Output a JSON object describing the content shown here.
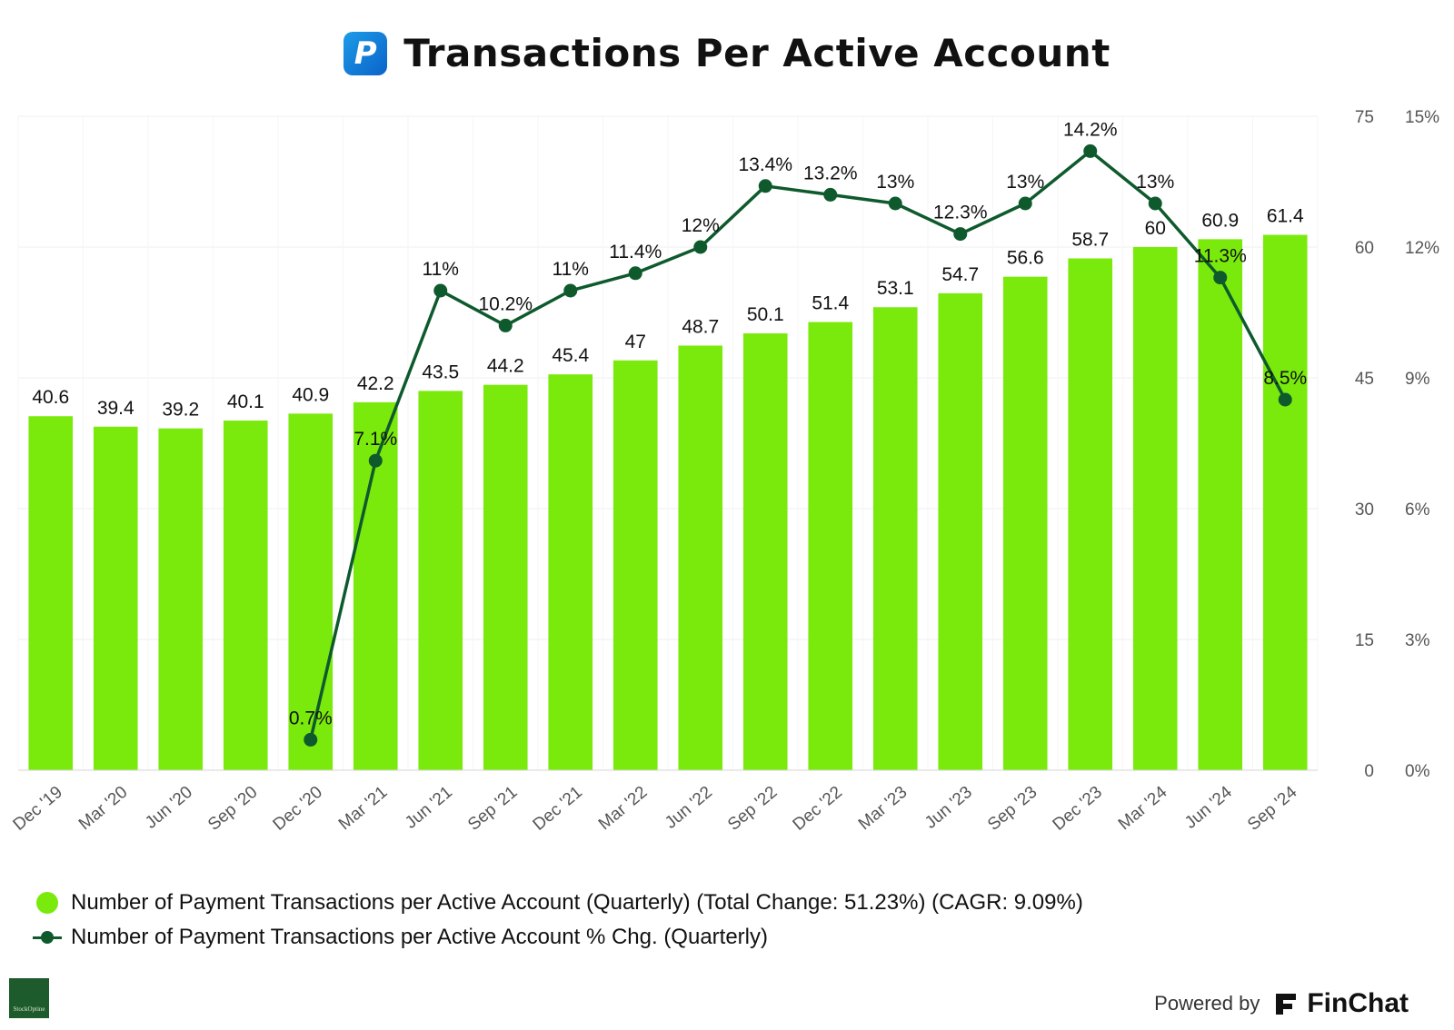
{
  "title": {
    "text": "Transactions Per Active Account",
    "logo_glyph": "P",
    "logo_icon": "paypal-logo-icon",
    "logo_color": "#1a8ee0"
  },
  "chart_data": {
    "type": "bar",
    "title": "Transactions Per Active Account",
    "categories": [
      "Dec '19",
      "Mar '20",
      "Jun '20",
      "Sep '20",
      "Dec '20",
      "Mar '21",
      "Jun '21",
      "Sep '21",
      "Dec '21",
      "Mar '22",
      "Jun '22",
      "Sep '22",
      "Dec '22",
      "Mar '23",
      "Jun '23",
      "Sep '23",
      "Dec '23",
      "Mar '24",
      "Jun '24",
      "Sep '24"
    ],
    "series": [
      {
        "name": "Number of Payment Transactions per Active Account (Quarterly) (Total Change: 51.23%) (CAGR: 9.09%)",
        "type": "bar",
        "axis": "primary",
        "color": "#7aea0c",
        "values": [
          40.6,
          39.4,
          39.2,
          40.1,
          40.9,
          42.2,
          43.5,
          44.2,
          45.4,
          47,
          48.7,
          50.1,
          51.4,
          53.1,
          54.7,
          56.6,
          58.7,
          60,
          60.9,
          61.4
        ],
        "labels": [
          "40.6",
          "39.4",
          "39.2",
          "40.1",
          "40.9",
          "42.2",
          "43.5",
          "44.2",
          "45.4",
          "47",
          "48.7",
          "50.1",
          "51.4",
          "53.1",
          "54.7",
          "56.6",
          "58.7",
          "60",
          "60.9",
          "61.4"
        ]
      },
      {
        "name": "Number of Payment Transactions per Active Account % Chg. (Quarterly)",
        "type": "line",
        "axis": "secondary",
        "color": "#0e5a2d",
        "values": [
          null,
          null,
          null,
          null,
          0.7,
          7.1,
          11,
          10.2,
          11,
          11.4,
          12,
          13.4,
          13.2,
          13,
          12.3,
          13,
          14.2,
          13,
          11.3,
          8.5
        ],
        "labels": [
          null,
          null,
          null,
          null,
          "0.7%",
          "7.1%",
          "11%",
          "10.2%",
          "11%",
          "11.4%",
          "12%",
          "13.4%",
          "13.2%",
          "13%",
          "12.3%",
          "13%",
          "14.2%",
          "13%",
          "11.3%",
          "8.5%"
        ]
      }
    ],
    "y_primary": {
      "min": 0,
      "max": 75,
      "ticks": [
        0,
        15,
        30,
        45,
        60,
        75
      ],
      "tick_labels": [
        "0",
        "15",
        "30",
        "45",
        "60",
        "75"
      ]
    },
    "y_secondary": {
      "min": 0,
      "max": 15,
      "ticks": [
        0,
        3,
        6,
        9,
        12,
        15
      ],
      "tick_labels": [
        "0%",
        "3%",
        "6%",
        "9%",
        "12%",
        "15%"
      ]
    },
    "grid": true,
    "legend_position": "bottom-left",
    "grid_color": "#efefef",
    "label_color": "#111111",
    "tick_color": "#555555"
  },
  "footer": {
    "left_brand": "StockOptine",
    "powered_by": "Powered by",
    "brand": "FinChat"
  }
}
